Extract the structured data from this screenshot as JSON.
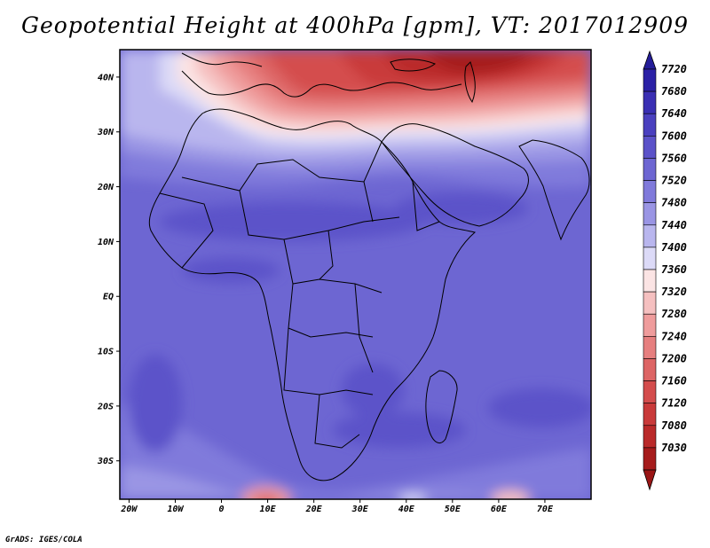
{
  "title": "Geopotential Height at 400hPa [gpm], VT: 2017012909",
  "credit": "GrADS: IGES/COLA",
  "map": {
    "lon_range": [
      -22,
      80
    ],
    "lat_range": [
      -37,
      45
    ],
    "lat_ticks": [
      {
        "value": 40,
        "label": "40N"
      },
      {
        "value": 30,
        "label": "30N"
      },
      {
        "value": 20,
        "label": "20N"
      },
      {
        "value": 10,
        "label": "10N"
      },
      {
        "value": 0,
        "label": "EQ"
      },
      {
        "value": -10,
        "label": "10S"
      },
      {
        "value": -20,
        "label": "20S"
      },
      {
        "value": -30,
        "label": "30S"
      }
    ],
    "lon_ticks": [
      {
        "value": -20,
        "label": "20W"
      },
      {
        "value": -10,
        "label": "10W"
      },
      {
        "value": 0,
        "label": "0"
      },
      {
        "value": 10,
        "label": "10E"
      },
      {
        "value": 20,
        "label": "20E"
      },
      {
        "value": 30,
        "label": "30E"
      },
      {
        "value": 40,
        "label": "40E"
      },
      {
        "value": 50,
        "label": "50E"
      },
      {
        "value": 60,
        "label": "60E"
      },
      {
        "value": 70,
        "label": "70E"
      }
    ]
  },
  "colorbar": {
    "levels": [
      {
        "label": "7720",
        "color": "#2b21a6"
      },
      {
        "label": "7680",
        "color": "#3a2fb3"
      },
      {
        "label": "7640",
        "color": "#4a40bf"
      },
      {
        "label": "7600",
        "color": "#5b52c9"
      },
      {
        "label": "7560",
        "color": "#6d66d2"
      },
      {
        "label": "7520",
        "color": "#807adb"
      },
      {
        "label": "7480",
        "color": "#9a95e4"
      },
      {
        "label": "7440",
        "color": "#b9b6ee"
      },
      {
        "label": "7400",
        "color": "#dcdaf7"
      },
      {
        "label": "7360",
        "color": "#fbe4e4"
      },
      {
        "label": "7320",
        "color": "#f5c0c0"
      },
      {
        "label": "7280",
        "color": "#ef9c9c"
      },
      {
        "label": "7240",
        "color": "#e67f7f"
      },
      {
        "label": "7200",
        "color": "#dd6565"
      },
      {
        "label": "7160",
        "color": "#d44d4d"
      },
      {
        "label": "7120",
        "color": "#c93a3a"
      },
      {
        "label": "7080",
        "color": "#ba2a2a"
      },
      {
        "label": "7030",
        "color": "#a61c1c"
      }
    ],
    "top_arrow_color": "#241d99",
    "bottom_arrow_color": "#9a1515"
  }
}
